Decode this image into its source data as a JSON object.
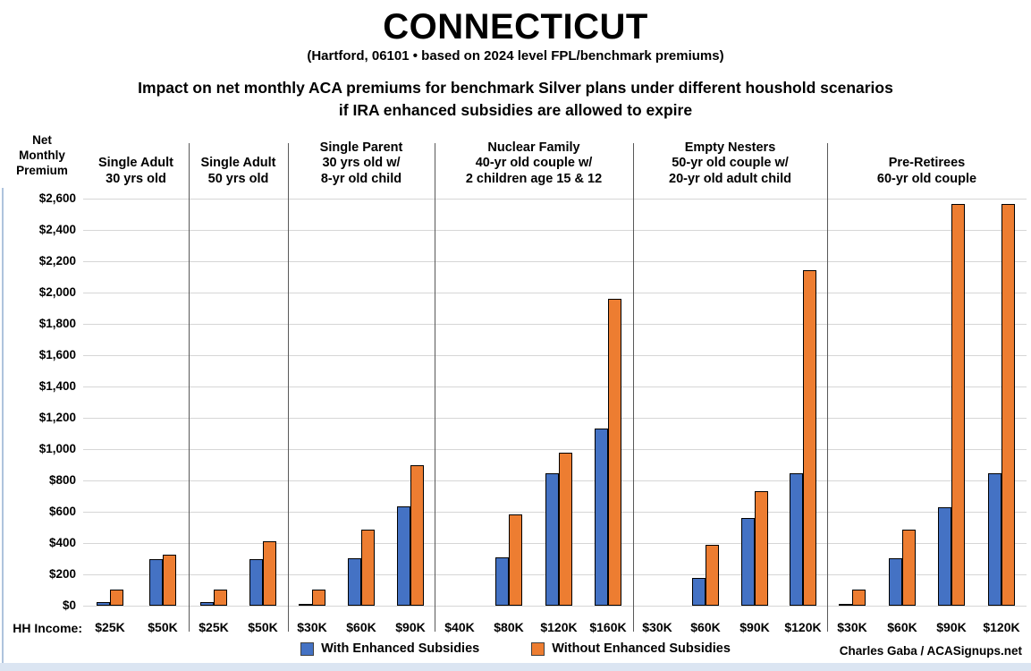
{
  "title": "CONNECTICUT",
  "subtitle": "(Hartford, 06101 • based on 2024 level FPL/benchmark premiums)",
  "description_line1": "Impact on net monthly ACA premiums for benchmark Silver plans under different houshold scenarios",
  "description_line2": "if IRA enhanced subsidies are allowed to expire",
  "y_axis_title": "Net\nMonthly\nPremium",
  "hh_income_label": "HH Income:",
  "legend": [
    {
      "label": "With Enhanced Subsidies",
      "color": "#4472C4"
    },
    {
      "label": "Without Enhanced Subsidies",
      "color": "#ED7D31"
    }
  ],
  "credit": "Charles Gaba / ACASignups.net",
  "chart_data": {
    "type": "bar",
    "title": "CONNECTICUT",
    "ylabel": "Net Monthly Premium",
    "xlabel": "HH Income",
    "ylim": [
      0,
      2600
    ],
    "ytick_step": 200,
    "ytick_labels": [
      "$2,600",
      "$2,400",
      "$2,200",
      "$2,000",
      "$1,800",
      "$1,600",
      "$1,400",
      "$1,200",
      "$1,000",
      "$800",
      "$600",
      "$400",
      "$200",
      "$0"
    ],
    "grid": "horizontal",
    "legend_position": "bottom",
    "series_names": [
      "With Enhanced Subsidies",
      "Without Enhanced Subsidies"
    ],
    "colors": {
      "with_subsidies": "#4472C4",
      "without_subsidies": "#ED7D31",
      "bar_border": "#000000"
    },
    "groups": [
      {
        "header": "Single Adult\n30 yrs old",
        "incomes": [
          "$25K",
          "$50K"
        ],
        "with_subsidies": [
          20,
          295
        ],
        "without_subsidies": [
          105,
          325
        ]
      },
      {
        "header": "Single Adult\n50 yrs old",
        "incomes": [
          "$25K",
          "$50K"
        ],
        "with_subsidies": [
          20,
          295
        ],
        "without_subsidies": [
          105,
          410
        ]
      },
      {
        "header": "Single Parent\n30 yrs old w/\n8-yr old child",
        "incomes": [
          "$30K",
          "$60K",
          "$90K"
        ],
        "with_subsidies": [
          5,
          305,
          635
        ],
        "without_subsidies": [
          105,
          485,
          895
        ]
      },
      {
        "header": "Nuclear Family\n40-yr old couple w/\n2 children age 15 & 12",
        "incomes": [
          "$40K",
          "$80K",
          "$120K",
          "$160K"
        ],
        "with_subsidies": [
          0,
          310,
          845,
          1130
        ],
        "without_subsidies": [
          0,
          580,
          975,
          1960
        ]
      },
      {
        "header": "Empty Nesters\n50-yr old couple w/\n20-yr old adult child",
        "incomes": [
          "$30K",
          "$60K",
          "$90K",
          "$120K"
        ],
        "with_subsidies": [
          0,
          175,
          560,
          845
        ],
        "without_subsidies": [
          0,
          390,
          730,
          2140
        ]
      },
      {
        "header": "Pre-Retirees\n60-yr old couple",
        "incomes": [
          "$30K",
          "$60K",
          "$90K",
          "$120K"
        ],
        "with_subsidies": [
          10,
          305,
          630,
          845
        ],
        "without_subsidies": [
          105,
          485,
          2565,
          2565
        ]
      }
    ]
  }
}
